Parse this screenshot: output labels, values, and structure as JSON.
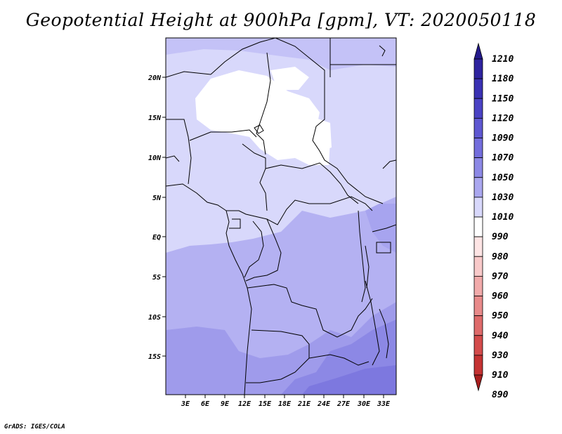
{
  "title": "Geopotential Height at 900hPa [gpm], VT: 2020050118",
  "credit": "GrADS: IGES/COLA",
  "map": {
    "lat_labels": [
      "20N",
      "15N",
      "10N",
      "5N",
      "EQ",
      "5S",
      "10S",
      "15S"
    ],
    "lon_labels": [
      "3E",
      "6E",
      "9E",
      "12E",
      "15E",
      "18E",
      "21E",
      "24E",
      "27E",
      "30E",
      "33E"
    ]
  },
  "colorbar": {
    "levels": [
      "1210",
      "1180",
      "1150",
      "1120",
      "1090",
      "1070",
      "1050",
      "1030",
      "1010",
      "990",
      "980",
      "970",
      "960",
      "950",
      "940",
      "930",
      "910",
      "890"
    ],
    "colors": [
      "#241a8c",
      "#2e239f",
      "#3a31b3",
      "#4a42c4",
      "#5e57d1",
      "#736ddc",
      "#8c88e5",
      "#aaa7ef",
      "#d8d8fb",
      "#ffffff",
      "#fde4e4",
      "#f8c9c9",
      "#f1aaaa",
      "#e88a8a",
      "#de6a6a",
      "#d34b4b",
      "#c43232",
      "#a81e1e"
    ]
  }
}
